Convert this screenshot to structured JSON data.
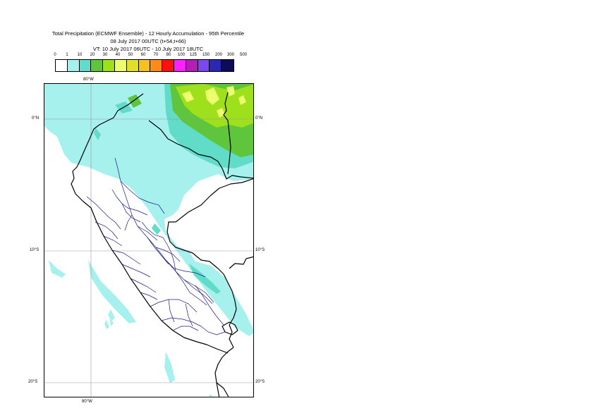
{
  "header": {
    "title_line1": "Total Precipitation (ECMWF Ensemble) - 12 Hourly Accumulation - 95th Percentile",
    "title_line2": "08 July 2017 00UTC (t+54,t+66)",
    "title_line3": "VT: 10 July 2017 06UTC - 10 July 2017 18UTC"
  },
  "legend": {
    "labels": [
      "0",
      "1",
      "10",
      "20",
      "30",
      "40",
      "50",
      "60",
      "70",
      "80",
      "100",
      "125",
      "150",
      "200",
      "300",
      "500"
    ],
    "colors": [
      "#ffffff",
      "#a6f0ee",
      "#60dcc8",
      "#5ec53c",
      "#9ee01c",
      "#eefc70",
      "#e0e02a",
      "#f8c020",
      "#ff8a1a",
      "#ff1010",
      "#ff20ff",
      "#b41eb4",
      "#7c46f0",
      "#2828b4",
      "#0c0c5a"
    ]
  },
  "map": {
    "lat_labels_left": [
      "0°N",
      "10°S",
      "20°S"
    ],
    "lat_labels_right": [
      "0°N",
      "10°S",
      "20°S"
    ],
    "lon_label_top": "80°W",
    "lon_label_bottom": "80°W"
  }
}
